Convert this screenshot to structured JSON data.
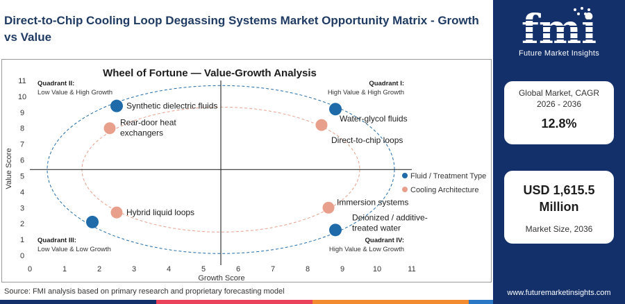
{
  "header": {
    "title": "Direct-to-Chip Cooling Loop Degassing Systems Market Opportunity Matrix - Growth vs Value"
  },
  "chart_data": {
    "type": "scatter",
    "title": "Wheel of Fortune — Value-Growth Analysis",
    "xlabel": "Growth Score",
    "ylabel": "Value Score",
    "xlim": [
      0,
      11
    ],
    "ylim": [
      0,
      11
    ],
    "x_ticks": [
      0,
      1,
      2,
      3,
      4,
      5,
      6,
      7,
      8,
      9,
      10,
      11
    ],
    "y_ticks": [
      0,
      1,
      2,
      3,
      4,
      5,
      6,
      7,
      8,
      9,
      10,
      11
    ],
    "divider": {
      "x": 5.5,
      "y": 5.4
    },
    "grid": false,
    "legend_position": "right",
    "quadrants": [
      {
        "name": "Quadrant II:",
        "desc": "Low Value & High Growth",
        "position": "top-left"
      },
      {
        "name": "Quadrant I:",
        "desc": "High Value & High Growth",
        "position": "top-right"
      },
      {
        "name": "Quadrant III:",
        "desc": "Low Value & Low Growth",
        "position": "bottom-left"
      },
      {
        "name": "Quadrant IV:",
        "desc": "High Value & Low Growth",
        "position": "bottom-right"
      }
    ],
    "series": [
      {
        "name": "Fluid / Treatment Type",
        "color": "#1f6aa8",
        "points": [
          {
            "label": "Synthetic dielectric fluids",
            "x": 2.5,
            "y": 9.4
          },
          {
            "label": "Water-glycol fluids",
            "x": 8.8,
            "y": 9.2
          },
          {
            "label": "Deionized / additive-treated water",
            "x": 8.8,
            "y": 1.6
          },
          {
            "label": "",
            "x": 1.8,
            "y": 2.1
          }
        ]
      },
      {
        "name": "Cooling Architecture",
        "color": "#e8a08c",
        "points": [
          {
            "label": "Rear-door heat exchangers",
            "x": 2.3,
            "y": 8.0
          },
          {
            "label": "Direct-to-chip loops",
            "x": 8.4,
            "y": 8.2
          },
          {
            "label": "Immersion systems",
            "x": 8.6,
            "y": 3.0
          },
          {
            "label": "Hybrid liquid loops",
            "x": 2.5,
            "y": 2.7
          }
        ]
      }
    ]
  },
  "footer": {
    "source": "Source: FMI analysis based on primary research and proprietary forecasting model",
    "bar_colors": [
      "#13306b",
      "#e9425a",
      "#f28b30",
      "#2a77c5"
    ]
  },
  "sidebar": {
    "logo_text": "fmi",
    "logo_tagline": "Future Market Insights",
    "cagr_label": "Global Market, CAGR 2026 - 2036",
    "cagr_value": "12.8%",
    "size_value": "USD 1,615.5 Million",
    "size_label": "Market Size, 2036",
    "url": "www.futuremarketinsights.com"
  }
}
